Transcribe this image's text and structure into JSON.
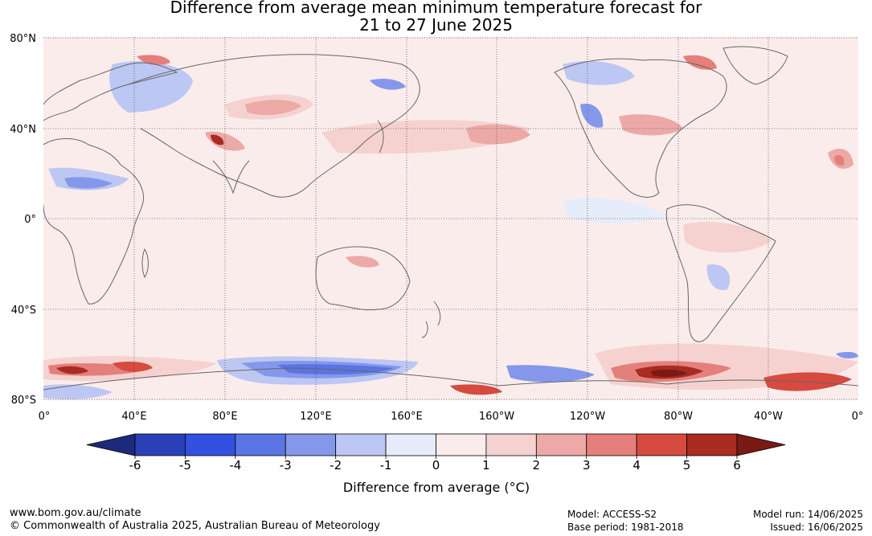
{
  "title": {
    "line1": "Difference from average mean minimum temperature forecast for",
    "line2": "21 to 27 June 2025"
  },
  "map": {
    "lat_labels": [
      "80°N",
      "40°N",
      "0°",
      "40°S",
      "80°S"
    ],
    "lon_labels": [
      "0°",
      "40°E",
      "80°E",
      "120°E",
      "160°E",
      "160°W",
      "120°W",
      "80°W",
      "40°W",
      "0°"
    ],
    "colors": {
      "ocean_base": "#fbecec",
      "land_outline": "#666666"
    }
  },
  "colorbar": {
    "tick_labels": [
      "-6",
      "-5",
      "-4",
      "-3",
      "-2",
      "-1",
      "0",
      "1",
      "2",
      "3",
      "4",
      "5",
      "6"
    ],
    "label": "Difference from average (°C)",
    "colors": [
      "#1b2a7a",
      "#2a40b8",
      "#3350e0",
      "#5b74e3",
      "#8497ea",
      "#bcc7f3",
      "#e7ecfb",
      "#fbecec",
      "#f5d2d0",
      "#eca9a6",
      "#e47f7b",
      "#d64a40",
      "#a92b22",
      "#7a1a14"
    ]
  },
  "footer": {
    "website": "www.bom.gov.au/climate",
    "copyright": "© Commonwealth of Australia 2025, Australian Bureau of Meteorology",
    "model": "Model: ACCESS-S2",
    "base_period": "Base period: 1981-2018",
    "model_run": "Model run: 14/06/2025",
    "issued": "Issued: 16/06/2025"
  }
}
